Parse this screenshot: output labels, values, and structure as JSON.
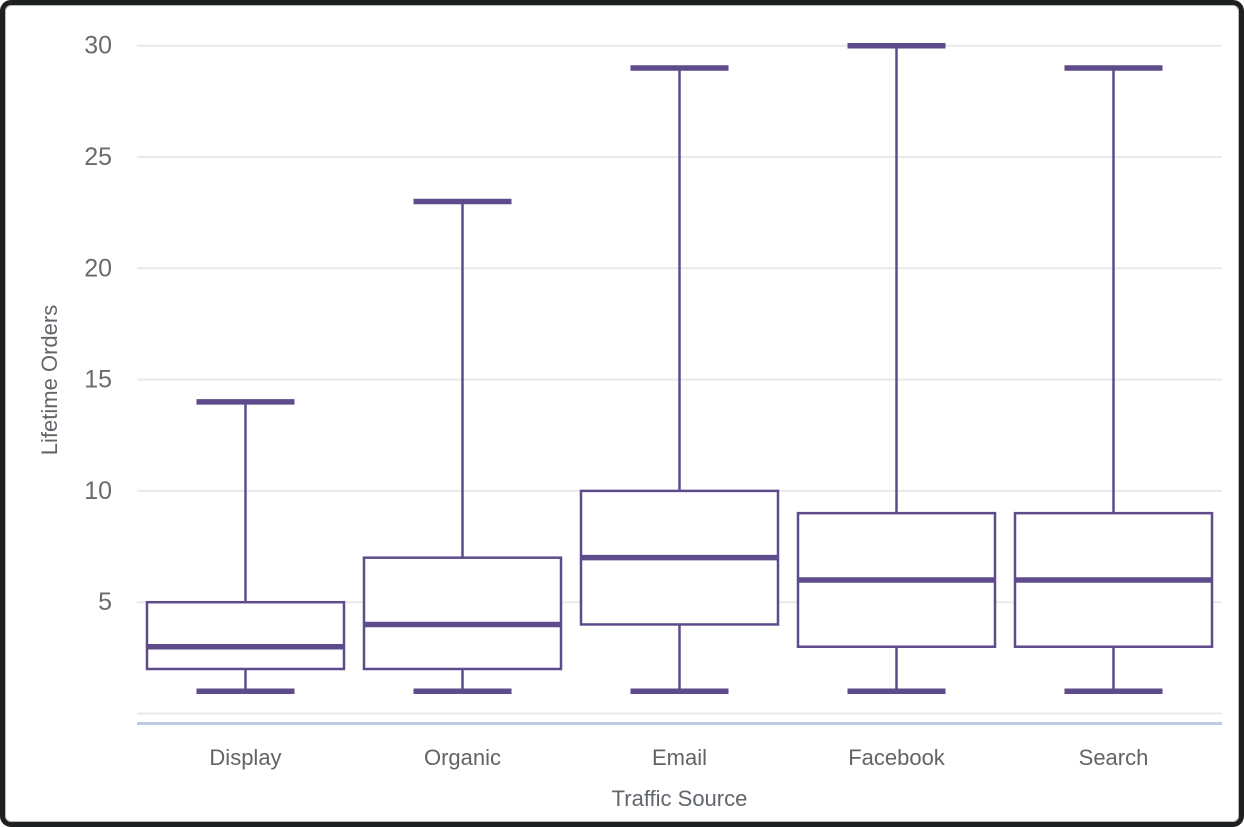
{
  "window": {
    "frame_color": "#1d1f21",
    "background": "#ffffff"
  },
  "chart_data": {
    "type": "box",
    "title": "",
    "xlabel": "Traffic Source",
    "ylabel": "Lifetime Orders",
    "categories": [
      "Display",
      "Organic",
      "Email",
      "Facebook",
      "Search"
    ],
    "series": [
      {
        "name": "Display",
        "min": 1,
        "q1": 2,
        "median": 3,
        "q3": 5,
        "max": 14
      },
      {
        "name": "Organic",
        "min": 1,
        "q1": 2,
        "median": 4,
        "q3": 7,
        "max": 23
      },
      {
        "name": "Email",
        "min": 1,
        "q1": 4,
        "median": 7,
        "q3": 10,
        "max": 29
      },
      {
        "name": "Facebook",
        "min": 1,
        "q1": 3,
        "median": 6,
        "q3": 9,
        "max": 30
      },
      {
        "name": "Search",
        "min": 1,
        "q1": 3,
        "median": 6,
        "q3": 9,
        "max": 29
      }
    ],
    "ylim": [
      0,
      30
    ],
    "yticks": [
      5,
      10,
      15,
      20,
      25,
      30
    ],
    "baseline_value": 0,
    "grid": true,
    "legend": "none",
    "colors": {
      "box_stroke": "#5e4b8b",
      "box_fill": "#ffffff",
      "gridline": "#e9e9e9",
      "axis_line": "#bfcbe3",
      "tick_text": "#6b6b6b",
      "category_text": "#636363",
      "axis_title_text": "#60666b"
    }
  }
}
